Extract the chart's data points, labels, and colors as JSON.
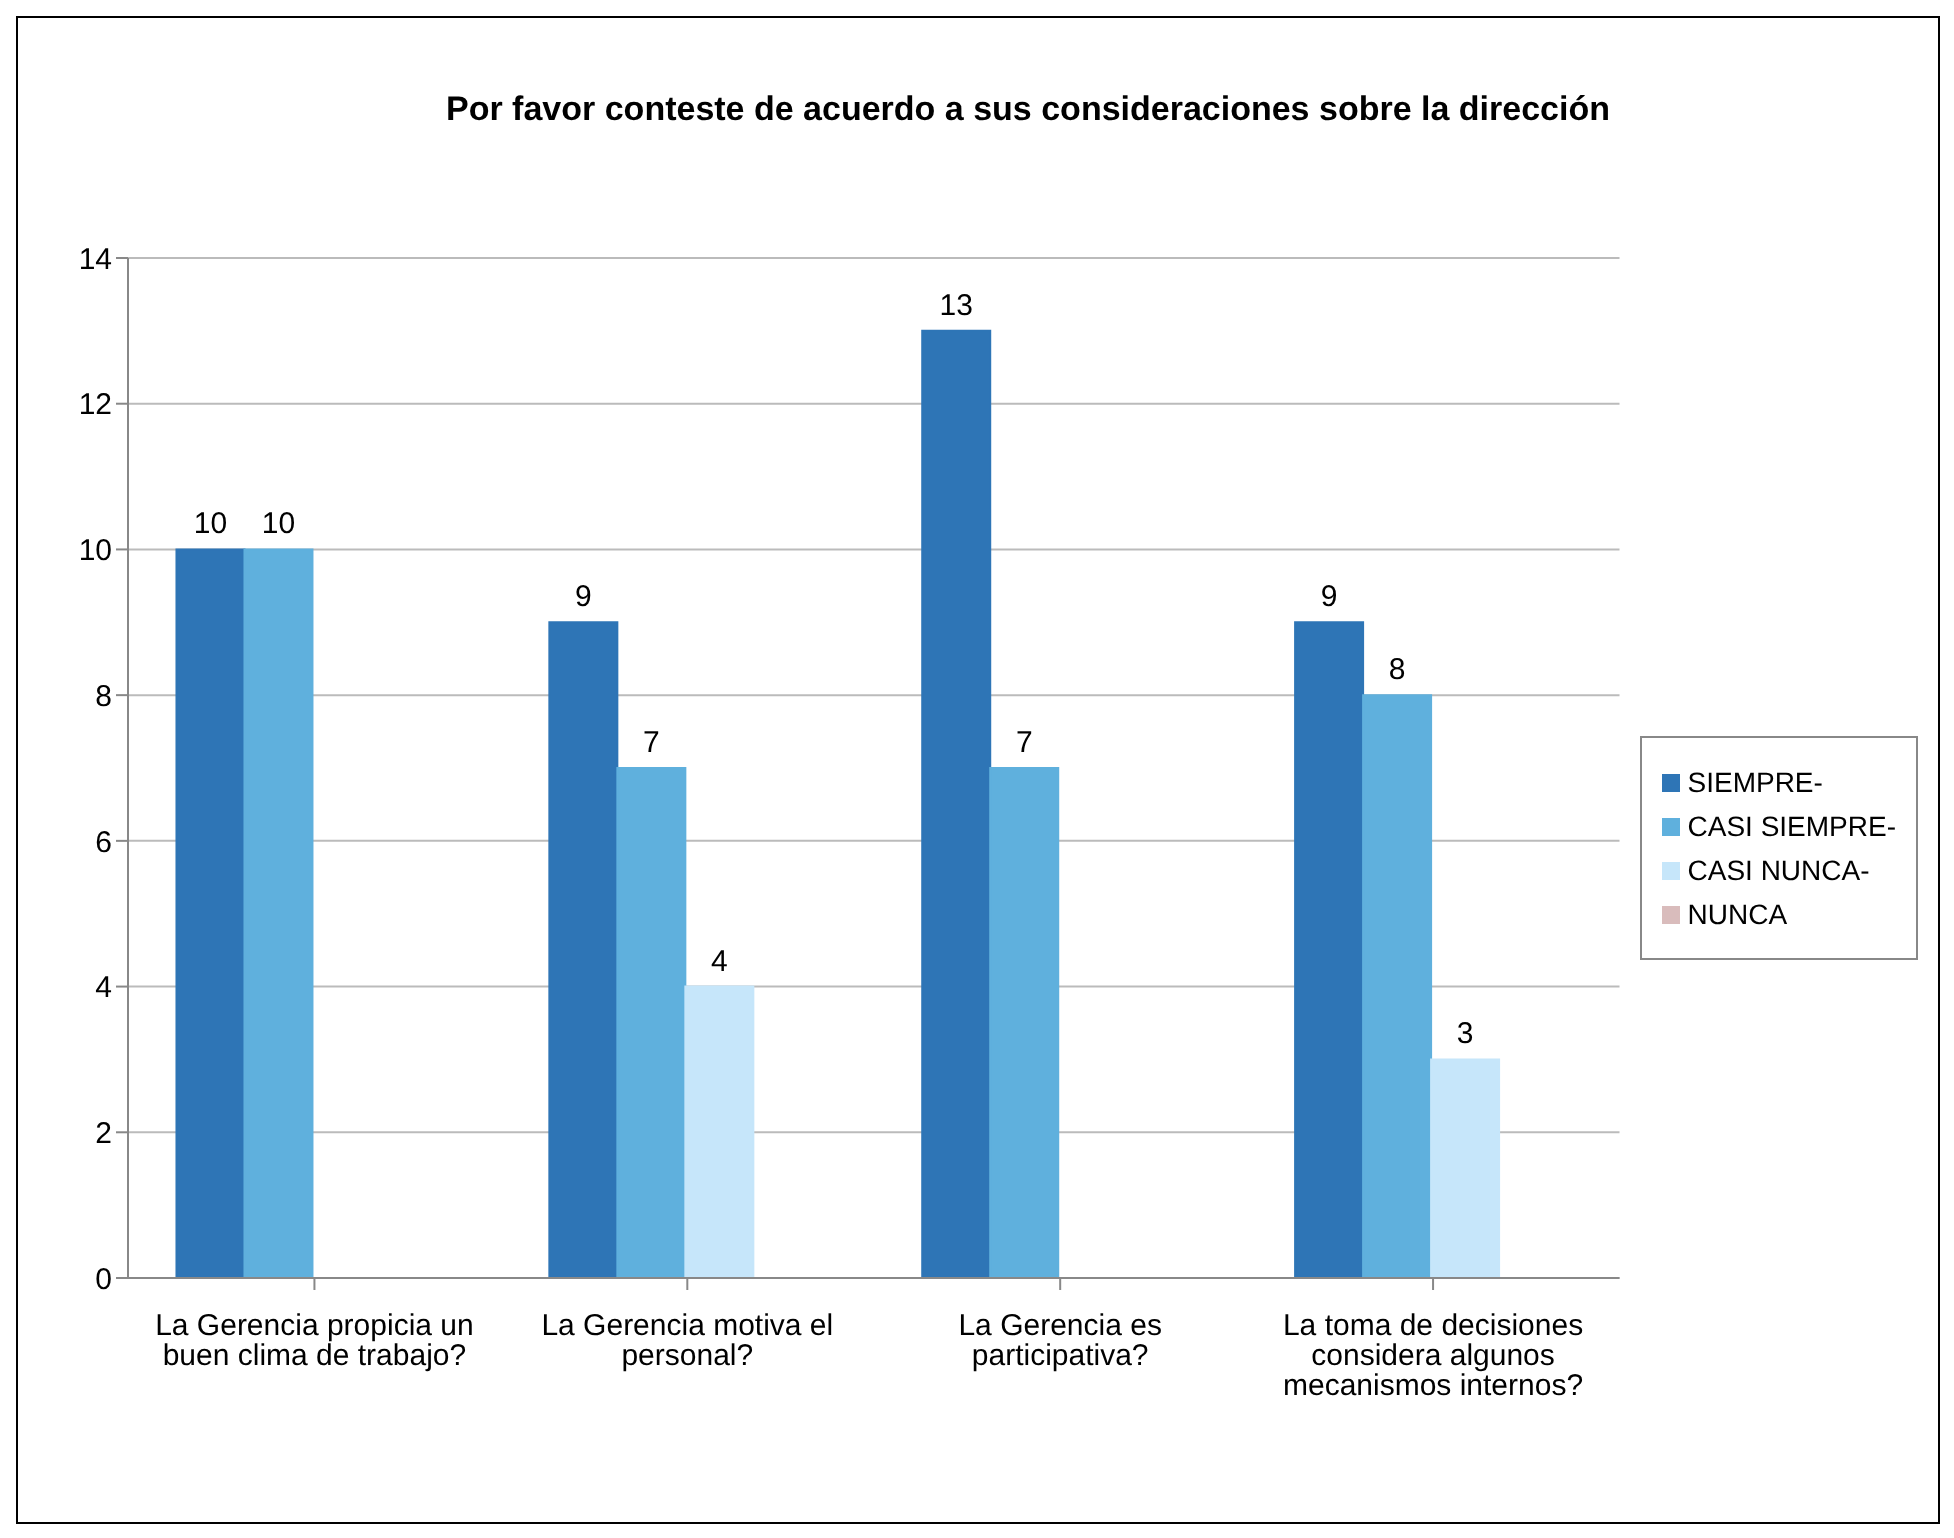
{
  "chart_data": {
    "type": "bar",
    "title": "Por favor conteste de acuerdo a sus consideraciones sobre la dirección",
    "categories": [
      "La Gerencia propicia un buen clima de trabajo?",
      "La Gerencia motiva el personal?",
      "La Gerencia es participativa?",
      "La toma de decisiones considera algunos mecanismos internos?"
    ],
    "series": [
      {
        "name": "SIEMPRE-",
        "color": "#2e75b6",
        "values": [
          10,
          9,
          13,
          9
        ]
      },
      {
        "name": "CASI SIEMPRE-",
        "color": "#5fb0dd",
        "values": [
          10,
          7,
          7,
          8
        ]
      },
      {
        "name": "CASI NUNCA-",
        "color": "#c6e6fa",
        "values": [
          null,
          4,
          null,
          3
        ]
      },
      {
        "name": "NUNCA",
        "color": "#d9bcbc",
        "values": [
          null,
          null,
          null,
          null
        ]
      }
    ],
    "ylim": [
      0,
      14
    ],
    "yticks": [
      0,
      2,
      4,
      6,
      8,
      10,
      12,
      14
    ],
    "grid": "y",
    "legend": "right",
    "data_labels": true
  }
}
